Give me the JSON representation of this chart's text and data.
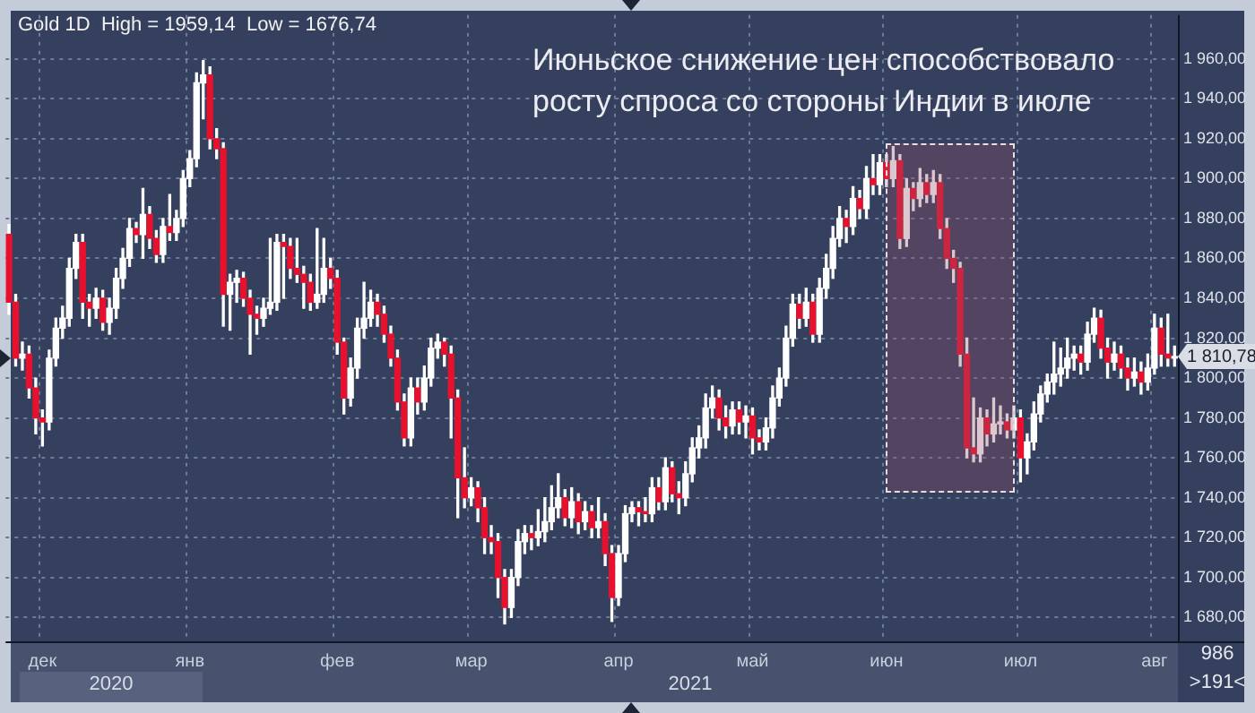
{
  "chart_data": {
    "type": "candlestick",
    "title": "Июньское снижение цен способствовало\nросту спроса со стороны Индии в июле",
    "categories": [
      null,
      null,
      null,
      null,
      null,
      "дек",
      null,
      null,
      null,
      null,
      null,
      null,
      null,
      null,
      null,
      null,
      null,
      null,
      null,
      null,
      null,
      null,
      null,
      null,
      null,
      null,
      null,
      "янв",
      null,
      null,
      null,
      null,
      null,
      null,
      null,
      null,
      null,
      null,
      null,
      null,
      null,
      null,
      null,
      null,
      null,
      null,
      null,
      null,
      null,
      "фев",
      null,
      null,
      null,
      null,
      null,
      null,
      null,
      null,
      null,
      null,
      null,
      null,
      null,
      null,
      null,
      null,
      null,
      null,
      null,
      "мар",
      null,
      null,
      null,
      null,
      null,
      null,
      null,
      null,
      null,
      null,
      null,
      null,
      null,
      null,
      null,
      null,
      null,
      null,
      null,
      null,
      null,
      "апр",
      null,
      null,
      null,
      null,
      null,
      null,
      null,
      null,
      null,
      null,
      null,
      null,
      null,
      null,
      null,
      null,
      null,
      null,
      null,
      "май",
      null,
      null,
      null,
      null,
      null,
      null,
      null,
      null,
      null,
      null,
      null,
      null,
      null,
      null,
      null,
      null,
      null,
      null,
      null,
      "июн",
      null,
      null,
      null,
      null,
      null,
      null,
      null,
      null,
      null,
      null,
      null,
      null,
      null,
      null,
      null,
      null,
      null,
      null,
      null,
      "июл",
      null,
      null,
      null,
      null,
      null,
      null,
      null,
      null,
      null,
      null,
      null,
      null,
      null,
      null,
      null,
      null,
      null,
      null,
      null,
      "авг",
      null,
      null,
      null
    ],
    "ohlc": [
      [
        1872,
        1877,
        1832,
        1838
      ],
      [
        1838,
        1842,
        1806,
        1810
      ],
      [
        1810,
        1818,
        1804,
        1812
      ],
      [
        1812,
        1816,
        1790,
        1795
      ],
      [
        1795,
        1800,
        1772,
        1780
      ],
      [
        1780,
        1784,
        1766,
        1778
      ],
      [
        1778,
        1814,
        1774,
        1810
      ],
      [
        1810,
        1830,
        1806,
        1825
      ],
      [
        1825,
        1836,
        1820,
        1830
      ],
      [
        1830,
        1860,
        1826,
        1855
      ],
      [
        1855,
        1872,
        1850,
        1868
      ],
      [
        1868,
        1872,
        1830,
        1838
      ],
      [
        1838,
        1842,
        1826,
        1835
      ],
      [
        1835,
        1845,
        1830,
        1840
      ],
      [
        1840,
        1844,
        1824,
        1828
      ],
      [
        1828,
        1840,
        1822,
        1835
      ],
      [
        1835,
        1855,
        1830,
        1850
      ],
      [
        1850,
        1865,
        1845,
        1860
      ],
      [
        1860,
        1880,
        1856,
        1875
      ],
      [
        1875,
        1878,
        1868,
        1872
      ],
      [
        1872,
        1895,
        1860,
        1882
      ],
      [
        1882,
        1886,
        1865,
        1870
      ],
      [
        1870,
        1874,
        1858,
        1862
      ],
      [
        1862,
        1880,
        1858,
        1876
      ],
      [
        1876,
        1892,
        1869,
        1873
      ],
      [
        1873,
        1884,
        1869,
        1880
      ],
      [
        1880,
        1904,
        1876,
        1900
      ],
      [
        1900,
        1914,
        1896,
        1910
      ],
      [
        1910,
        1953,
        1906,
        1948
      ],
      [
        1948,
        1959.14,
        1930,
        1952
      ],
      [
        1952,
        1956,
        1915,
        1920
      ],
      [
        1920,
        1925,
        1910,
        1915
      ],
      [
        1915,
        1918,
        1826,
        1842
      ],
      [
        1842,
        1852,
        1824,
        1848
      ],
      [
        1848,
        1854,
        1838,
        1850
      ],
      [
        1850,
        1853,
        1836,
        1840
      ],
      [
        1840,
        1844,
        1812,
        1832
      ],
      [
        1832,
        1836,
        1822,
        1830
      ],
      [
        1830,
        1840,
        1826,
        1835
      ],
      [
        1835,
        1870,
        1832,
        1838
      ],
      [
        1838,
        1872,
        1834,
        1868
      ],
      [
        1868,
        1872,
        1840,
        1866
      ],
      [
        1866,
        1870,
        1850,
        1855
      ],
      [
        1855,
        1870,
        1848,
        1852
      ],
      [
        1852,
        1856,
        1835,
        1848
      ],
      [
        1848,
        1852,
        1834,
        1838
      ],
      [
        1838,
        1875,
        1835,
        1842
      ],
      [
        1842,
        1870,
        1838,
        1855
      ],
      [
        1855,
        1860,
        1845,
        1850
      ],
      [
        1850,
        1854,
        1812,
        1818
      ],
      [
        1818,
        1820,
        1782,
        1790
      ],
      [
        1790,
        1810,
        1786,
        1805
      ],
      [
        1805,
        1830,
        1800,
        1825
      ],
      [
        1825,
        1848,
        1820,
        1830
      ],
      [
        1830,
        1844,
        1826,
        1838
      ],
      [
        1838,
        1842,
        1826,
        1832
      ],
      [
        1832,
        1836,
        1818,
        1822
      ],
      [
        1822,
        1826,
        1806,
        1810
      ],
      [
        1810,
        1814,
        1784,
        1788
      ],
      [
        1788,
        1792,
        1766,
        1770
      ],
      [
        1770,
        1800,
        1766,
        1795
      ],
      [
        1795,
        1800,
        1782,
        1788
      ],
      [
        1788,
        1806,
        1784,
        1800
      ],
      [
        1800,
        1820,
        1796,
        1815
      ],
      [
        1815,
        1822,
        1810,
        1818
      ],
      [
        1818,
        1820,
        1806,
        1812
      ],
      [
        1812,
        1816,
        1770,
        1790
      ],
      [
        1790,
        1794,
        1730,
        1750
      ],
      [
        1750,
        1765,
        1735,
        1740
      ],
      [
        1740,
        1750,
        1736,
        1745
      ],
      [
        1745,
        1748,
        1728,
        1735
      ],
      [
        1735,
        1740,
        1712,
        1720
      ],
      [
        1720,
        1726,
        1712,
        1718
      ],
      [
        1718,
        1722,
        1690,
        1700
      ],
      [
        1700,
        1704,
        1676.74,
        1685
      ],
      [
        1685,
        1704,
        1680,
        1700
      ],
      [
        1700,
        1724,
        1696,
        1718
      ],
      [
        1718,
        1726,
        1712,
        1722
      ],
      [
        1722,
        1726,
        1714,
        1720
      ],
      [
        1720,
        1734,
        1716,
        1723
      ],
      [
        1723,
        1740,
        1718,
        1728
      ],
      [
        1728,
        1746,
        1724,
        1735
      ],
      [
        1735,
        1752,
        1730,
        1740
      ],
      [
        1740,
        1744,
        1726,
        1730
      ],
      [
        1730,
        1745,
        1725,
        1738
      ],
      [
        1738,
        1742,
        1722,
        1728
      ],
      [
        1728,
        1738,
        1724,
        1733
      ],
      [
        1733,
        1736,
        1720,
        1725
      ],
      [
        1725,
        1740,
        1720,
        1728
      ],
      [
        1728,
        1732,
        1706,
        1712
      ],
      [
        1712,
        1716,
        1678,
        1690
      ],
      [
        1690,
        1716,
        1686,
        1712
      ],
      [
        1712,
        1736,
        1708,
        1732
      ],
      [
        1732,
        1738,
        1728,
        1735
      ],
      [
        1735,
        1738,
        1726,
        1733
      ],
      [
        1733,
        1740,
        1728,
        1732
      ],
      [
        1732,
        1750,
        1728,
        1745
      ],
      [
        1745,
        1750,
        1734,
        1738
      ],
      [
        1738,
        1760,
        1734,
        1755
      ],
      [
        1755,
        1758,
        1738,
        1742
      ],
      [
        1742,
        1748,
        1732,
        1740
      ],
      [
        1740,
        1758,
        1736,
        1752
      ],
      [
        1752,
        1770,
        1748,
        1765
      ],
      [
        1765,
        1776,
        1760,
        1770
      ],
      [
        1770,
        1792,
        1765,
        1785
      ],
      [
        1785,
        1796,
        1780,
        1790
      ],
      [
        1790,
        1794,
        1774,
        1780
      ],
      [
        1780,
        1786,
        1770,
        1776
      ],
      [
        1776,
        1788,
        1772,
        1784
      ],
      [
        1784,
        1788,
        1772,
        1778
      ],
      [
        1778,
        1786,
        1770,
        1781
      ],
      [
        1781,
        1785,
        1762,
        1770
      ],
      [
        1770,
        1774,
        1764,
        1768
      ],
      [
        1768,
        1780,
        1764,
        1775
      ],
      [
        1775,
        1796,
        1770,
        1790
      ],
      [
        1790,
        1805,
        1786,
        1800
      ],
      [
        1800,
        1826,
        1796,
        1820
      ],
      [
        1820,
        1842,
        1816,
        1837
      ],
      [
        1837,
        1842,
        1825,
        1830
      ],
      [
        1830,
        1845,
        1826,
        1838
      ],
      [
        1838,
        1842,
        1818,
        1822
      ],
      [
        1822,
        1850,
        1818,
        1845
      ],
      [
        1845,
        1862,
        1840,
        1855
      ],
      [
        1855,
        1876,
        1850,
        1870
      ],
      [
        1870,
        1886,
        1866,
        1880
      ],
      [
        1880,
        1884,
        1868,
        1876
      ],
      [
        1876,
        1896,
        1872,
        1890
      ],
      [
        1890,
        1894,
        1880,
        1885
      ],
      [
        1885,
        1906,
        1880,
        1900
      ],
      [
        1900,
        1912,
        1892,
        1897
      ],
      [
        1897,
        1912,
        1892,
        1908
      ],
      [
        1908,
        1912,
        1896,
        1900
      ],
      [
        1900,
        1916,
        1896,
        1909
      ],
      [
        1909,
        1912,
        1865,
        1870
      ],
      [
        1870,
        1900,
        1866,
        1895
      ],
      [
        1895,
        1898,
        1884,
        1890
      ],
      [
        1890,
        1905,
        1886,
        1898
      ],
      [
        1898,
        1902,
        1888,
        1892
      ],
      [
        1892,
        1904,
        1888,
        1898
      ],
      [
        1898,
        1902,
        1870,
        1875
      ],
      [
        1875,
        1880,
        1855,
        1860
      ],
      [
        1860,
        1864,
        1848,
        1855
      ],
      [
        1855,
        1858,
        1806,
        1812
      ],
      [
        1812,
        1820,
        1760,
        1765
      ],
      [
        1765,
        1790,
        1758,
        1762
      ],
      [
        1762,
        1785,
        1758,
        1780
      ],
      [
        1780,
        1784,
        1766,
        1772
      ],
      [
        1772,
        1790,
        1768,
        1777
      ],
      [
        1777,
        1786,
        1772,
        1778
      ],
      [
        1778,
        1782,
        1770,
        1774
      ],
      [
        1774,
        1786,
        1770,
        1780
      ],
      [
        1780,
        1784,
        1748,
        1760
      ],
      [
        1760,
        1772,
        1752,
        1768
      ],
      [
        1768,
        1788,
        1764,
        1782
      ],
      [
        1782,
        1796,
        1778,
        1792
      ],
      [
        1792,
        1802,
        1788,
        1798
      ],
      [
        1798,
        1818,
        1792,
        1802
      ],
      [
        1802,
        1815,
        1796,
        1805
      ],
      [
        1805,
        1820,
        1800,
        1810
      ],
      [
        1810,
        1816,
        1804,
        1812
      ],
      [
        1812,
        1816,
        1802,
        1808
      ],
      [
        1808,
        1828,
        1804,
        1822
      ],
      [
        1822,
        1835,
        1818,
        1830
      ],
      [
        1830,
        1834,
        1810,
        1815
      ],
      [
        1815,
        1820,
        1800,
        1808
      ],
      [
        1808,
        1818,
        1804,
        1812
      ],
      [
        1812,
        1816,
        1800,
        1805
      ],
      [
        1805,
        1810,
        1794,
        1800
      ],
      [
        1800,
        1810,
        1796,
        1803
      ],
      [
        1803,
        1808,
        1792,
        1798
      ],
      [
        1798,
        1812,
        1794,
        1805
      ],
      [
        1805,
        1832,
        1802,
        1825
      ],
      [
        1825,
        1830,
        1806,
        1812
      ],
      [
        1812,
        1832,
        1806,
        1810
      ],
      [
        1810,
        1816,
        1806,
        1810.78
      ]
    ],
    "colors": [
      "#e8112d",
      "#e8112d",
      "#ffffff",
      "#e8112d",
      "#e8112d",
      "#e8112d",
      "#ffffff",
      "#ffffff",
      "#ffffff",
      "#ffffff",
      "#ffffff",
      "#e8112d",
      "#e8112d",
      "#ffffff",
      "#e8112d",
      "#ffffff",
      "#ffffff",
      "#ffffff",
      "#ffffff",
      "#e8112d",
      "#ffffff",
      "#e8112d",
      "#e8112d",
      "#ffffff",
      "#e8112d",
      "#ffffff",
      "#ffffff",
      "#ffffff",
      "#ffffff",
      "#ffffff",
      "#e8112d",
      "#e8112d",
      "#e8112d",
      "#ffffff",
      "#ffffff",
      "#e8112d",
      "#e8112d",
      "#e8112d",
      "#ffffff",
      "#ffffff",
      "#ffffff",
      "#e8112d",
      "#e8112d",
      "#e8112d",
      "#e8112d",
      "#e8112d",
      "#ffffff",
      "#ffffff",
      "#e8112d",
      "#e8112d",
      "#e8112d",
      "#ffffff",
      "#ffffff",
      "#ffffff",
      "#ffffff",
      "#e8112d",
      "#e8112d",
      "#e8112d",
      "#e8112d",
      "#e8112d",
      "#ffffff",
      "#e8112d",
      "#ffffff",
      "#ffffff",
      "#ffffff",
      "#e8112d",
      "#e8112d",
      "#e8112d",
      "#e8112d",
      "#ffffff",
      "#e8112d",
      "#e8112d",
      "#e8112d",
      "#e8112d",
      "#e8112d",
      "#ffffff",
      "#ffffff",
      "#ffffff",
      "#e8112d",
      "#ffffff",
      "#ffffff",
      "#ffffff",
      "#ffffff",
      "#e8112d",
      "#ffffff",
      "#e8112d",
      "#ffffff",
      "#e8112d",
      "#ffffff",
      "#e8112d",
      "#e8112d",
      "#ffffff",
      "#ffffff",
      "#ffffff",
      "#e8112d",
      "#e8112d",
      "#ffffff",
      "#e8112d",
      "#ffffff",
      "#e8112d",
      "#e8112d",
      "#ffffff",
      "#ffffff",
      "#ffffff",
      "#ffffff",
      "#ffffff",
      "#e8112d",
      "#e8112d",
      "#ffffff",
      "#e8112d",
      "#ffffff",
      "#e8112d",
      "#e8112d",
      "#ffffff",
      "#ffffff",
      "#ffffff",
      "#ffffff",
      "#ffffff",
      "#e8112d",
      "#ffffff",
      "#e8112d",
      "#ffffff",
      "#ffffff",
      "#ffffff",
      "#ffffff",
      "#e8112d",
      "#ffffff",
      "#e8112d",
      "#ffffff",
      "#e8112d",
      "#ffffff",
      "#e8112d",
      "#ffffff",
      "#e8112d",
      "#ffffff",
      "#e8112d",
      "#ffffff",
      "#e8112d",
      "#ffffff",
      "#e8112d",
      "#e8112d",
      "#e8112d",
      "#e8112d",
      "#e8112d",
      "#e8112d",
      "#ffffff",
      "#e8112d",
      "#ffffff",
      "#ffffff",
      "#e8112d",
      "#ffffff",
      "#e8112d",
      "#ffffff",
      "#ffffff",
      "#ffffff",
      "#ffffff",
      "#ffffff",
      "#ffffff",
      "#ffffff",
      "#ffffff",
      "#e8112d",
      "#ffffff",
      "#ffffff",
      "#e8112d",
      "#e8112d",
      "#ffffff",
      "#e8112d",
      "#e8112d",
      "#ffffff",
      "#e8112d",
      "#ffffff",
      "#ffffff",
      "#e8112d",
      "#e8112d",
      "#ffffff"
    ],
    "ylim": [
      1668,
      1982
    ],
    "yticks": [
      {
        "value": 1680,
        "label": "1 680,00"
      },
      {
        "value": 1700,
        "label": "1 700,00"
      },
      {
        "value": 1720,
        "label": "1 720,00"
      },
      {
        "value": 1740,
        "label": "1 740,00"
      },
      {
        "value": 1760,
        "label": "1 760,00"
      },
      {
        "value": 1780,
        "label": "1 780,00"
      },
      {
        "value": 1800,
        "label": "1 800,00"
      },
      {
        "value": 1820,
        "label": "1 820,00"
      },
      {
        "value": 1840,
        "label": "1 840,00"
      },
      {
        "value": 1860,
        "label": "1 860,00"
      },
      {
        "value": 1880,
        "label": "1 880,00"
      },
      {
        "value": 1900,
        "label": "1 900,00"
      },
      {
        "value": 1920,
        "label": "1 920,00"
      },
      {
        "value": 1940,
        "label": "1 940,00"
      },
      {
        "value": 1960,
        "label": "1 960,00"
      }
    ],
    "grid": true,
    "annotations": [
      "Gold 1D  High = 1959,14  Low = 1676,74",
      "2020",
      "2021",
      "986",
      ">191<",
      "1 810,78"
    ]
  }
}
